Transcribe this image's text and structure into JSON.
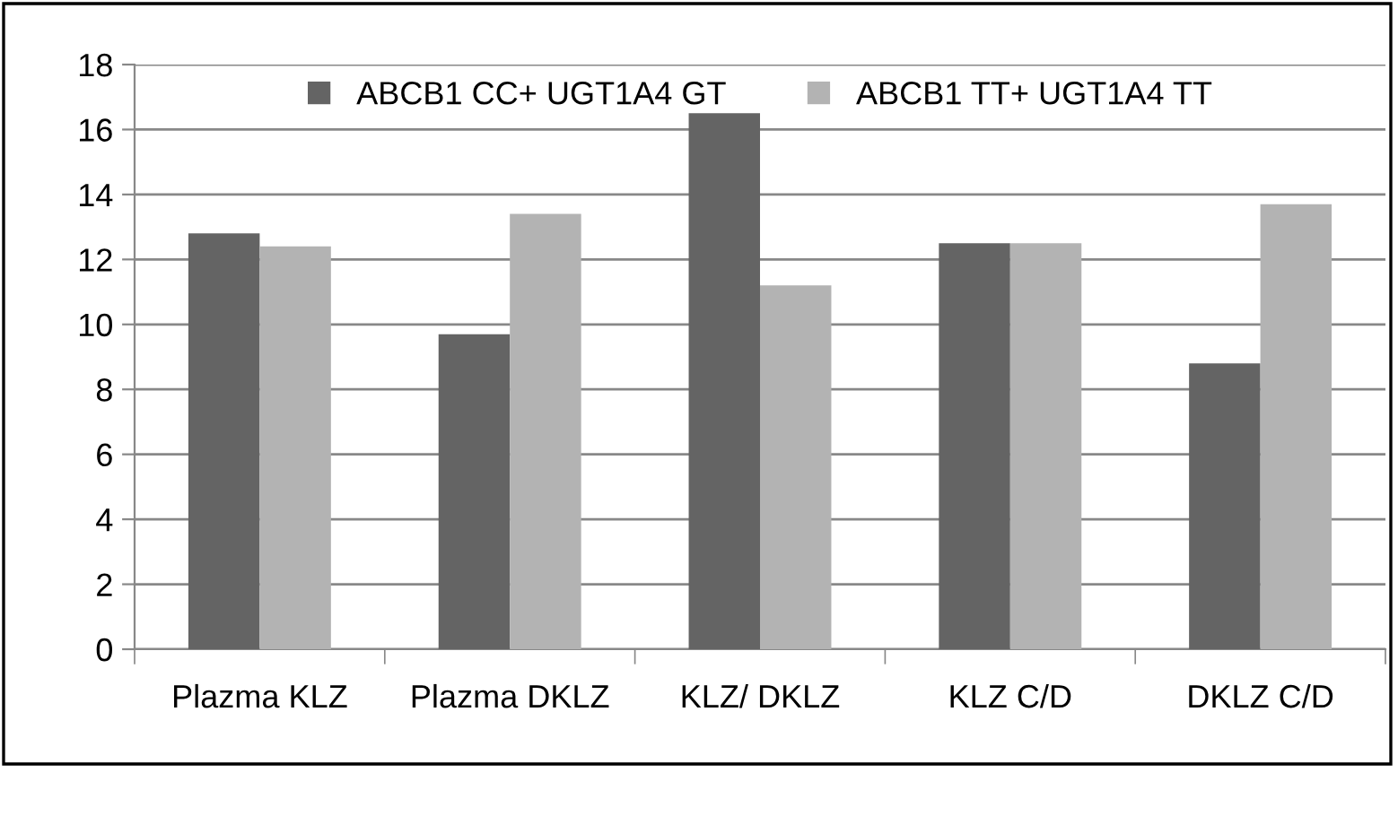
{
  "chart_data": {
    "type": "bar",
    "categories": [
      "Plazma KLZ",
      "Plazma DKLZ",
      "KLZ/ DKLZ",
      "KLZ C/D",
      "DKLZ C/D"
    ],
    "series": [
      {
        "name": "ABCB1 CC+ UGT1A4 GT",
        "color": "#646464",
        "values": [
          12.8,
          9.7,
          16.5,
          12.5,
          8.8
        ]
      },
      {
        "name": "ABCB1 TT+ UGT1A4 TT",
        "color": "#b3b3b3",
        "values": [
          12.4,
          13.4,
          11.2,
          12.5,
          13.7
        ]
      }
    ],
    "ylim": [
      0,
      18
    ],
    "yticks": [
      0,
      2,
      4,
      6,
      8,
      10,
      12,
      14,
      16,
      18
    ],
    "grid": "y",
    "legend": "top"
  }
}
